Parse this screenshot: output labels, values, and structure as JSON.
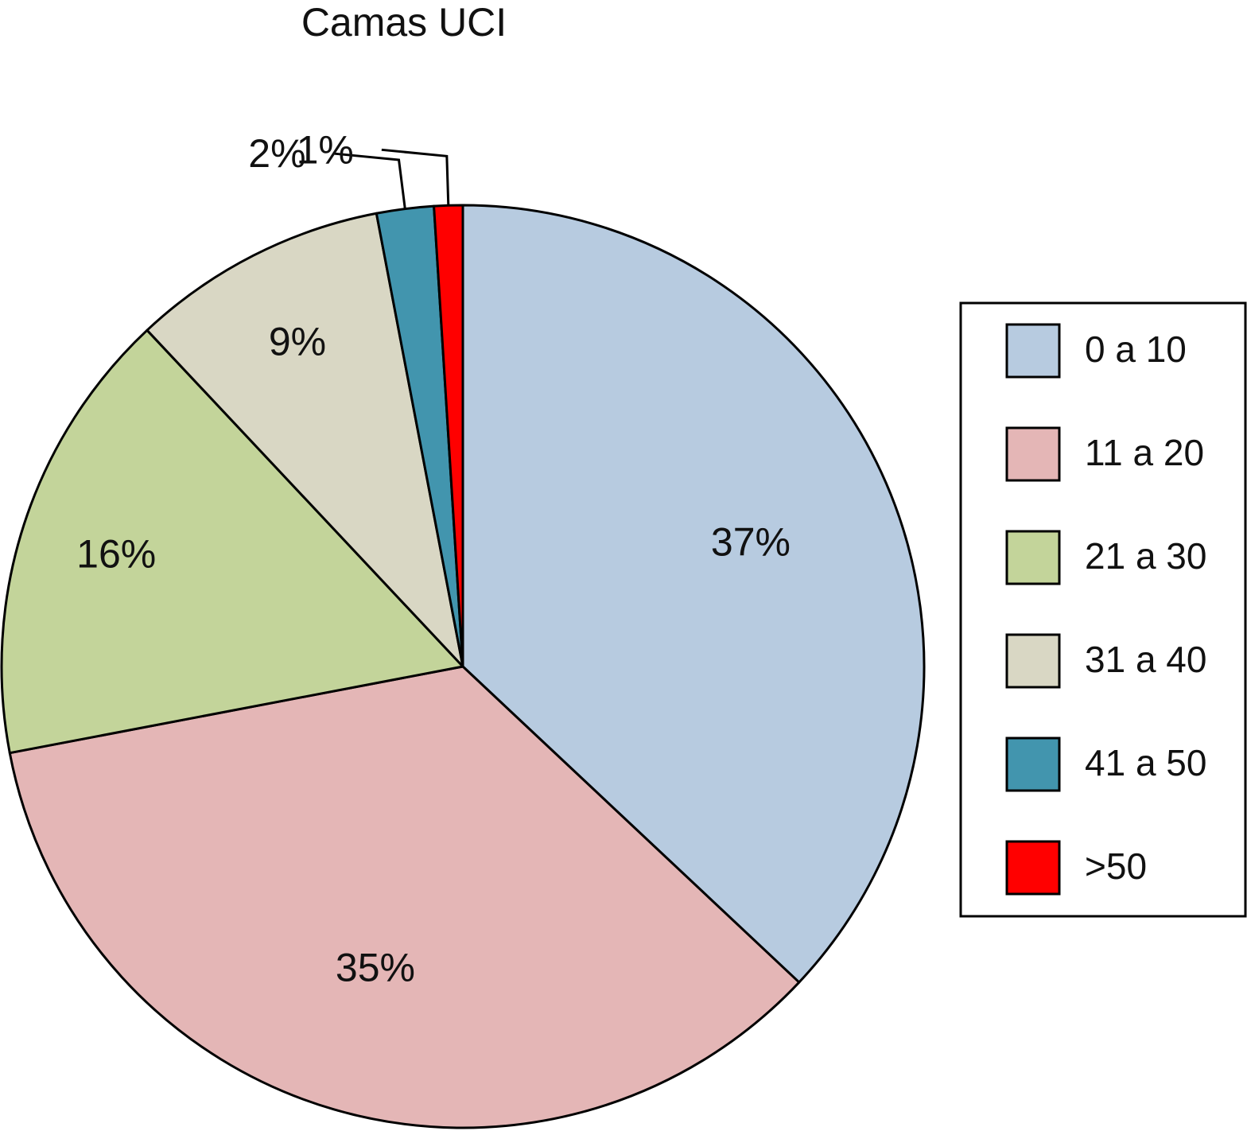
{
  "chart_data": {
    "type": "pie",
    "title": "Camas UCI",
    "categories": [
      "0 a 10",
      "11 a 20",
      "21 a 30",
      "31 a 40",
      "41 a 50",
      ">50"
    ],
    "values": [
      37,
      35,
      16,
      9,
      2,
      1
    ],
    "labels": [
      "37%",
      "35%",
      "16%",
      "9%",
      "2%",
      "1%"
    ],
    "colors": [
      "#b7cbe0",
      "#e4b6b6",
      "#c3d49a",
      "#d9d7c4",
      "#4295ae",
      "#ff0000"
    ],
    "start": "12 o'clock",
    "direction": "clockwise",
    "legend_position": "right"
  }
}
